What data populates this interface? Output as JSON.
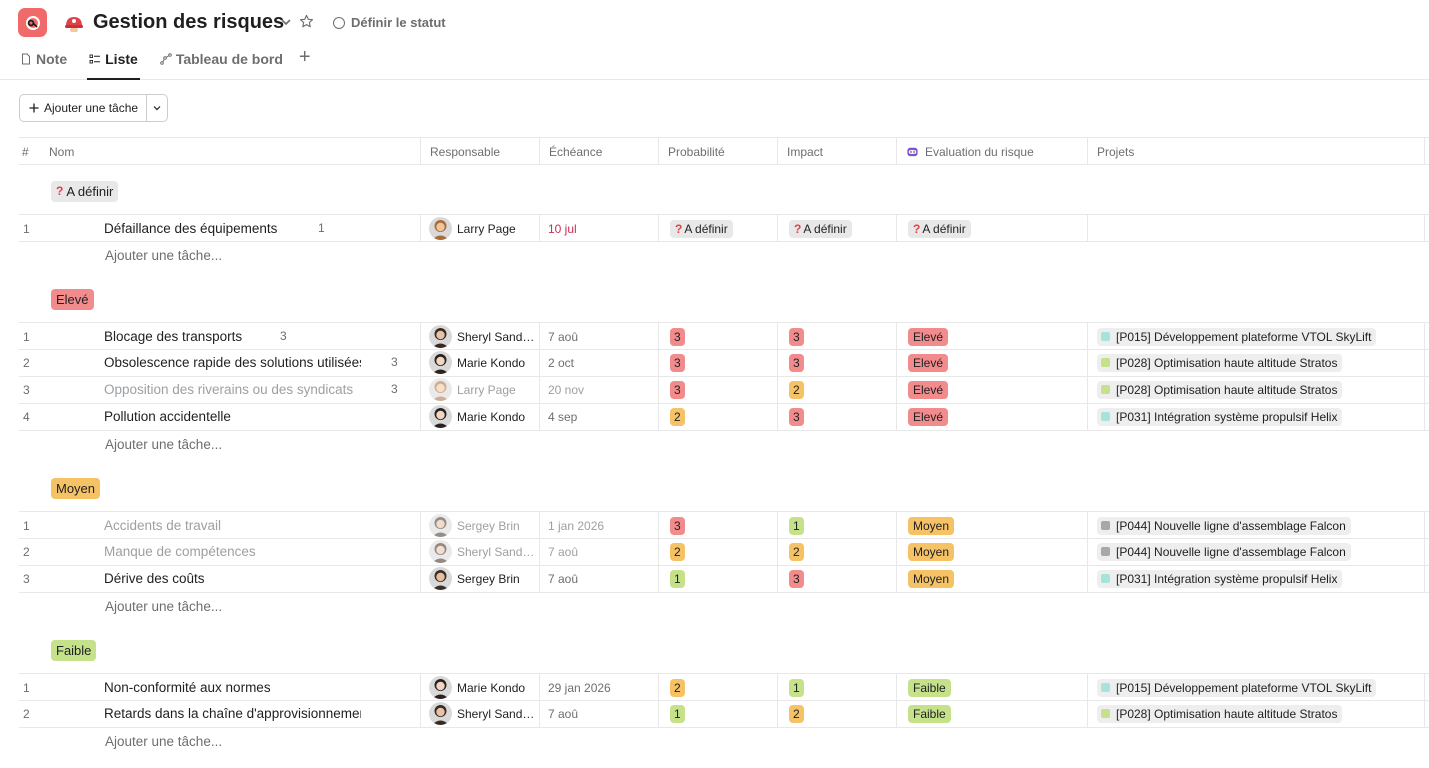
{
  "header": {
    "title": "Gestion des risques",
    "status_label": "Définir le statut",
    "tabs": [
      {
        "label": "Note",
        "icon": "document-icon"
      },
      {
        "label": "Liste",
        "icon": "list-icon"
      },
      {
        "label": "Tableau de bord",
        "icon": "dashboard-icon"
      }
    ]
  },
  "toolbar": {
    "add_task_label": "Ajouter une tâche"
  },
  "columns": {
    "num": "#",
    "name": "Nom",
    "responsable": "Responsable",
    "echeance": "Échéance",
    "probabilite": "Probabilité",
    "impact": "Impact",
    "evaluation": "Evaluation du risque",
    "projets": "Projets"
  },
  "add_task_row_label": "Ajouter une tâche...",
  "colors": {
    "red": "#f28b8b",
    "orange": "#f5c266",
    "green": "#c5e28a",
    "gray": "#e8e8e8",
    "accent": "#f06a6a"
  },
  "sections": [
    {
      "label": "A définir",
      "rows": [
        {
          "num": "1",
          "name": "Défaillance des équipements",
          "meta": "1",
          "meta_type": "comment",
          "owner": "Larry Page",
          "due": "10 jul",
          "prob": "A définir",
          "impact": "A définir",
          "eval": "A définir",
          "project": ""
        }
      ]
    },
    {
      "label": "Elevé",
      "rows": [
        {
          "num": "1",
          "name": "Blocage des transports",
          "meta": "3",
          "meta_type": "subtask",
          "owner": "Sheryl Sandb...",
          "due": "7 aoû",
          "prob": "3",
          "impact": "3",
          "eval": "Elevé",
          "project": "[P015] Développement plateforme VTOL SkyLift"
        },
        {
          "num": "2",
          "name": "Obsolescence rapide des solutions utilisées",
          "meta": "3",
          "meta_type": "subtask",
          "owner": "Marie Kondo",
          "due": "2 oct",
          "prob": "3",
          "impact": "3",
          "eval": "Elevé",
          "project": "[P028] Optimisation haute altitude Stratos"
        },
        {
          "num": "3",
          "name": "Opposition des riverains ou des syndicats",
          "meta": "3",
          "meta_type": "subtask",
          "owner": "Larry Page",
          "due": "20 nov",
          "prob": "3",
          "impact": "2",
          "eval": "Elevé",
          "project": "[P028] Optimisation haute altitude Stratos"
        },
        {
          "num": "4",
          "name": "Pollution accidentelle",
          "meta": "",
          "meta_type": "",
          "owner": "Marie Kondo",
          "due": "4 sep",
          "prob": "2",
          "impact": "3",
          "eval": "Elevé",
          "project": "[P031] Intégration système propulsif Helix"
        }
      ]
    },
    {
      "label": "Moyen",
      "rows": [
        {
          "num": "1",
          "name": "Accidents de travail",
          "meta": "",
          "owner": "Sergey Brin",
          "due": "1 jan 2026",
          "prob": "3",
          "impact": "1",
          "eval": "Moyen",
          "project": "[P044] Nouvelle ligne d'assemblage Falcon"
        },
        {
          "num": "2",
          "name": "Manque de compétences",
          "meta": "",
          "owner": "Sheryl Sandb...",
          "due": "7 aoû",
          "prob": "2",
          "impact": "2",
          "eval": "Moyen",
          "project": "[P044] Nouvelle ligne d'assemblage Falcon"
        },
        {
          "num": "3",
          "name": "Dérive des coûts",
          "meta": "",
          "owner": "Sergey Brin",
          "due": "7 aoû",
          "prob": "1",
          "impact": "3",
          "eval": "Moyen",
          "project": "[P031] Intégration système propulsif Helix"
        }
      ]
    },
    {
      "label": "Faible",
      "rows": [
        {
          "num": "1",
          "name": "Non-conformité aux normes",
          "meta": "",
          "owner": "Marie Kondo",
          "due": "29 jan 2026",
          "prob": "2",
          "impact": "1",
          "eval": "Faible",
          "project": "[P015] Développement plateforme VTOL SkyLift"
        },
        {
          "num": "2",
          "name": "Retards dans la chaîne d'approvisionnement",
          "meta": "",
          "owner": "Sheryl Sandb...",
          "due": "7 aoû",
          "prob": "1",
          "impact": "2",
          "eval": "Faible",
          "project": "[P028] Optimisation haute altitude Stratos"
        }
      ]
    }
  ]
}
